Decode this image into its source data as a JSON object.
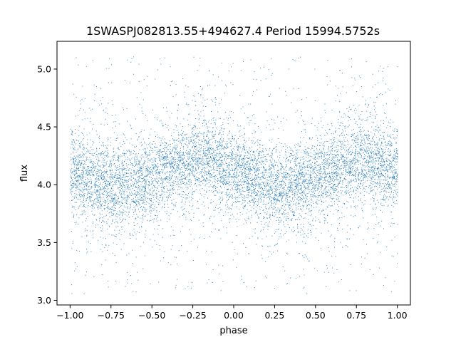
{
  "chart_data": {
    "type": "scatter",
    "title": "1SWASPJ082813.55+494627.4 Period 15994.5752s",
    "xlabel": "phase",
    "ylabel": "flux",
    "xlim": [
      -1.08,
      1.08
    ],
    "ylim": [
      2.96,
      5.24
    ],
    "xticks": [
      -1.0,
      -0.75,
      -0.5,
      -0.25,
      0.0,
      0.25,
      0.5,
      0.75,
      1.0
    ],
    "xtick_labels": [
      "−1.00",
      "−0.75",
      "−0.50",
      "−0.25",
      "0.00",
      "0.25",
      "0.50",
      "0.75",
      "1.00"
    ],
    "yticks": [
      3.0,
      3.5,
      4.0,
      4.5,
      5.0
    ],
    "ytick_labels": [
      "3.0",
      "3.5",
      "4.0",
      "4.5",
      "5.0"
    ],
    "grid": false,
    "legend": "none",
    "color": "#1f77b4",
    "model": {
      "description": "dense cloud of points, phase in [-1,1], flux oscillating sinusoidally",
      "mean": 4.1,
      "amplitude": 0.11,
      "peak_phases": [
        -0.2,
        0.8
      ],
      "trough_phases": [
        -0.7,
        0.3
      ],
      "core_spread": 0.17,
      "outlier_range": [
        3.05,
        5.12
      ]
    }
  }
}
